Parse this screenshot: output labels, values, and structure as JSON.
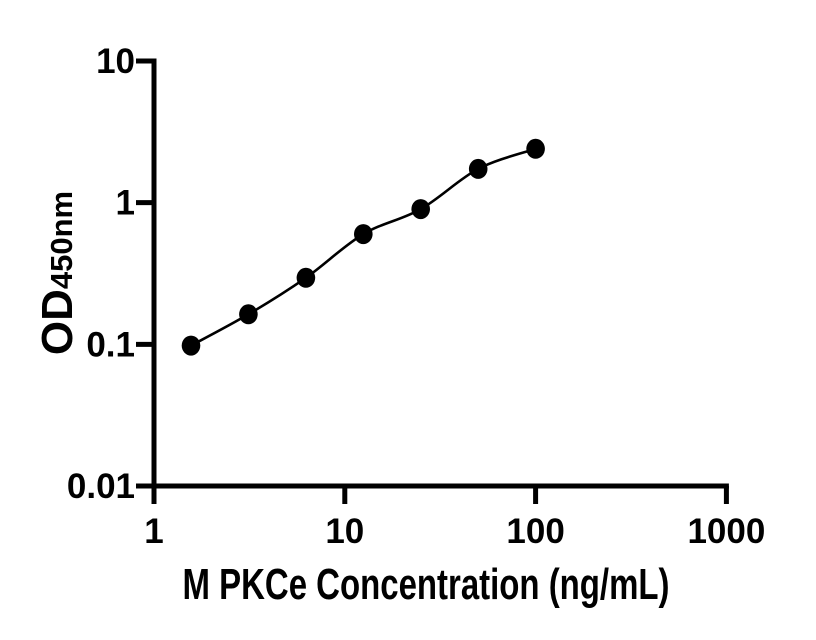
{
  "figure": {
    "background_color": "#ffffff",
    "foreground_color": "#000000"
  },
  "chart_data": {
    "type": "line",
    "title": "",
    "xlabel": "M PKCe Concentration (ng/mL)",
    "ylabel_main": "OD",
    "ylabel_sub": "450nm",
    "x_scale": "log",
    "y_scale": "log",
    "xlim": [
      1,
      1000
    ],
    "ylim": [
      0.01,
      10
    ],
    "x_ticks": [
      1,
      10,
      100,
      1000
    ],
    "y_ticks": [
      10,
      1,
      0.1,
      0.01
    ],
    "grid": false,
    "legend": "none",
    "marker": "filled-circle",
    "x": [
      1.5625,
      3.125,
      6.25,
      12.5,
      25,
      50,
      100
    ],
    "y": [
      0.098,
      0.163,
      0.295,
      0.6,
      0.9,
      1.73,
      2.4
    ],
    "colors": {
      "curve": "#000000",
      "marker": "#000000",
      "axis": "#000000",
      "tick_text": "#000000"
    }
  }
}
